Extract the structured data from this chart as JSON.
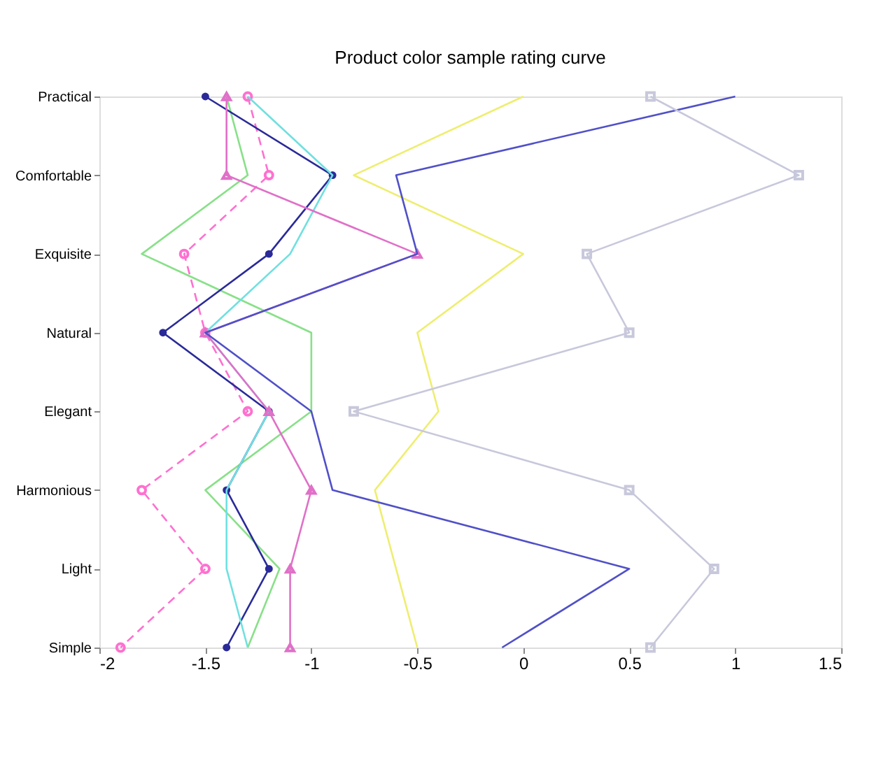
{
  "chart_data": {
    "type": "line",
    "title": "Product color sample rating curve",
    "orientation": "horizontal",
    "categories": [
      "Practical",
      "Comfortable",
      "Exquisite",
      "Natural",
      "Elegant",
      "Harmonious",
      "Light",
      "Simple"
    ],
    "xlim": [
      -2,
      1.5
    ],
    "xticks": [
      -2,
      -1.5,
      -1,
      -0.5,
      0,
      0.5,
      1,
      1.5
    ],
    "grid": false,
    "series": [
      {
        "color": "#ff70d0",
        "line_style": "dashed",
        "marker": "circle",
        "values": [
          -1.3,
          -1.2,
          -1.6,
          -1.5,
          -1.3,
          -1.8,
          -1.5,
          -1.9
        ]
      },
      {
        "color": "#88e088",
        "line_style": "solid",
        "marker": "none",
        "values": [
          -1.4,
          -1.3,
          -1.8,
          -1.0,
          -1.0,
          -1.5,
          -1.15,
          -1.3
        ]
      },
      {
        "color": "#2a2a99",
        "line_style": "solid",
        "marker": "circle",
        "values": [
          -1.5,
          -0.9,
          -1.2,
          -1.7,
          -1.2,
          -1.4,
          -1.2,
          -1.4
        ]
      },
      {
        "color": "#70e0e0",
        "line_style": "solid",
        "marker": "none",
        "values": [
          -1.3,
          -0.9,
          -1.1,
          -1.5,
          -1.2,
          -1.4,
          -1.4,
          -1.3
        ]
      },
      {
        "color": "#e070c8",
        "line_style": "solid",
        "marker": "triangle",
        "values": [
          -1.4,
          -1.4,
          -0.5,
          -1.5,
          -1.2,
          -1.0,
          -1.1,
          -1.1
        ]
      },
      {
        "color": "#eeee70",
        "line_style": "solid",
        "marker": "none",
        "values": [
          0,
          -0.8,
          0,
          -0.5,
          -0.4,
          -0.7,
          -0.6,
          -0.5
        ]
      },
      {
        "color": "#5050c8",
        "line_style": "solid",
        "marker": "none",
        "values": [
          1.0,
          -0.6,
          -0.5,
          -1.5,
          -1.0,
          -0.9,
          0.5,
          -0.1
        ]
      },
      {
        "color": "#c8c8dc",
        "line_style": "solid",
        "marker": "square",
        "values": [
          0.6,
          1.3,
          0.3,
          0.5,
          -0.8,
          0.5,
          0.9,
          0.6
        ]
      }
    ]
  }
}
